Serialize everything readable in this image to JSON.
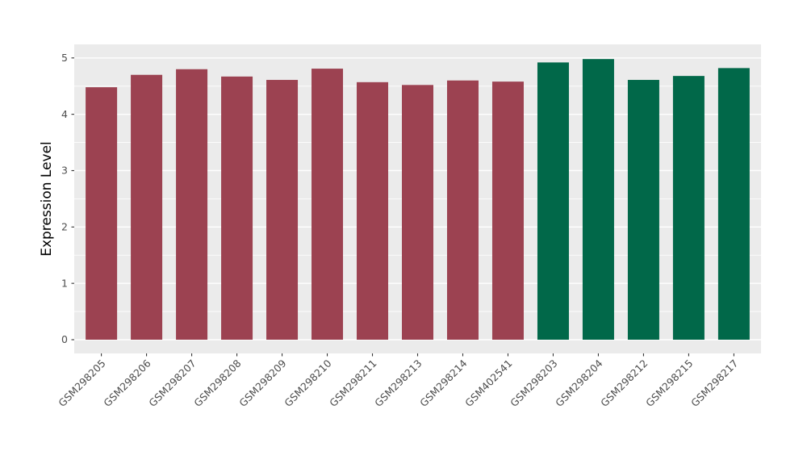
{
  "figure": {
    "kind": "ggplot-style-barplot",
    "panel_background": "#EBEBEB",
    "grid_color": "#FFFFFF",
    "tick_color": "#333333",
    "tick_label_color": "#4D4D4D",
    "axis_title_color": "#000000"
  },
  "chart_data": {
    "type": "bar",
    "title": "",
    "xlabel": "",
    "ylabel": "Expression Level",
    "categories": [
      "GSM298205",
      "GSM298206",
      "GSM298207",
      "GSM298208",
      "GSM298209",
      "GSM298210",
      "GSM298211",
      "GSM298213",
      "GSM298214",
      "GSM402541",
      "GSM298203",
      "GSM298204",
      "GSM298212",
      "GSM298215",
      "GSM298217"
    ],
    "values": [
      4.48,
      4.7,
      4.8,
      4.67,
      4.61,
      4.81,
      4.57,
      4.52,
      4.6,
      4.58,
      4.92,
      4.98,
      4.61,
      4.68,
      4.82
    ],
    "groups": [
      "A",
      "A",
      "A",
      "A",
      "A",
      "A",
      "A",
      "A",
      "A",
      "A",
      "B",
      "B",
      "B",
      "B",
      "B"
    ],
    "group_colors": {
      "A": "#9C4251",
      "B": "#016849"
    },
    "yticks": [
      0,
      1,
      2,
      3,
      4,
      5
    ],
    "yticks_minor": [
      0.5,
      1.5,
      2.5,
      3.5,
      4.5
    ],
    "ylim": [
      -0.24,
      5.24
    ],
    "grid": true,
    "legend_position": "none",
    "x_tick_label_angle": 45
  }
}
